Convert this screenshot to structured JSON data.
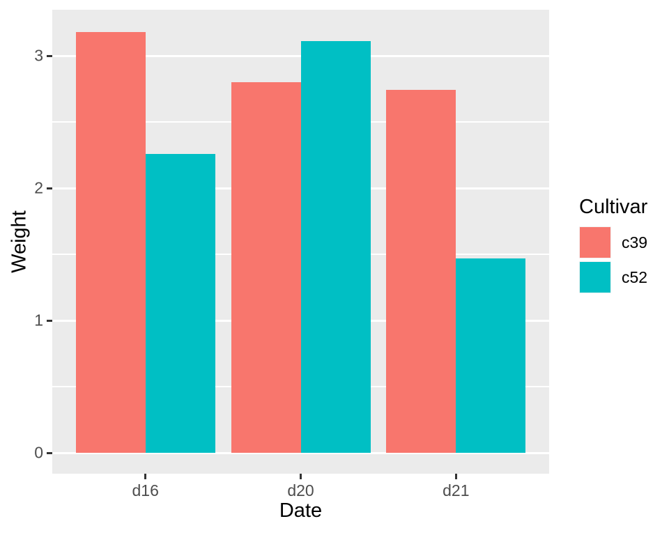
{
  "figure": {
    "background": "#FFFFFF",
    "panel_background": "#EBEBEB",
    "gridline_color": "#FFFFFF",
    "tick_mark_color": "#333333",
    "tick_label_color": "#4D4D4D",
    "axis_title_color": "#000000",
    "legend_text_color": "#000000",
    "legend_key_background": "#F2F2F2"
  },
  "chart_data": {
    "type": "bar",
    "grouped": true,
    "title": "",
    "xlabel": "Date",
    "ylabel": "Weight",
    "categories": [
      "d16",
      "d20",
      "d21"
    ],
    "series": [
      {
        "name": "c39",
        "color": "#F8766D",
        "values": [
          3.18,
          2.8,
          2.74
        ]
      },
      {
        "name": "c52",
        "color": "#00BFC4",
        "values": [
          2.26,
          3.11,
          1.47
        ]
      }
    ],
    "y_ticks": [
      0,
      1,
      2,
      3
    ],
    "y_minor_ticks": [
      0.5,
      1.5,
      2.5
    ],
    "ylim": [
      -0.16,
      3.34
    ],
    "grid": "major-minor-white",
    "legend": {
      "title": "Cultivar",
      "position": "right"
    }
  }
}
